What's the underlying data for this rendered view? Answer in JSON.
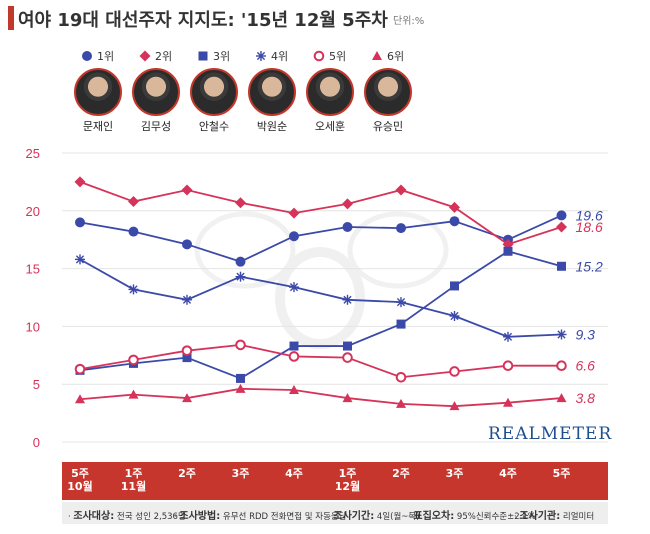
{
  "header": {
    "title": "여야 19대 대선주자 지지도: '15년 12월 5주차",
    "unit": "단위:%"
  },
  "legend": [
    {
      "rank": "1위",
      "name": "문재인",
      "color": "#3b4aa8",
      "marker": "circle"
    },
    {
      "rank": "2위",
      "name": "김무성",
      "color": "#d6335a",
      "marker": "diamond"
    },
    {
      "rank": "3위",
      "name": "안철수",
      "color": "#3b4aa8",
      "marker": "square"
    },
    {
      "rank": "4위",
      "name": "박원순",
      "color": "#3b4aa8",
      "marker": "star"
    },
    {
      "rank": "5위",
      "name": "오세훈",
      "color": "#d6335a",
      "marker": "ring"
    },
    {
      "rank": "6위",
      "name": "유승민",
      "color": "#d6335a",
      "marker": "triangle"
    }
  ],
  "brand": "REALMETER",
  "chart_data": {
    "type": "line",
    "categories": [
      [
        "5주",
        "10월"
      ],
      [
        "1주",
        "11월"
      ],
      [
        "2주",
        ""
      ],
      [
        "3주",
        ""
      ],
      [
        "4주",
        ""
      ],
      [
        "1주",
        "12월"
      ],
      [
        "2주",
        ""
      ],
      [
        "3주",
        ""
      ],
      [
        "4주",
        ""
      ],
      [
        "5주",
        ""
      ]
    ],
    "ylim": [
      0,
      25
    ],
    "yticks": [
      "0",
      "5",
      "10",
      "15",
      "20",
      "25"
    ],
    "grid": true,
    "series": [
      {
        "name": "문재인",
        "color": "#3b4aa8",
        "marker": "circle",
        "values": [
          19.0,
          18.2,
          17.1,
          15.6,
          17.8,
          18.6,
          18.5,
          19.1,
          17.5,
          19.6
        ],
        "end_label": "19.6"
      },
      {
        "name": "김무성",
        "color": "#d6335a",
        "marker": "diamond",
        "values": [
          22.5,
          20.8,
          21.8,
          20.7,
          19.8,
          20.6,
          21.8,
          20.3,
          17.1,
          18.6
        ],
        "end_label": "18.6"
      },
      {
        "name": "안철수",
        "color": "#3b4aa8",
        "marker": "square",
        "values": [
          6.2,
          6.8,
          7.3,
          5.5,
          8.3,
          8.3,
          10.2,
          13.5,
          16.5,
          15.2
        ],
        "end_label": "15.2"
      },
      {
        "name": "박원순",
        "color": "#3b4aa8",
        "marker": "star",
        "values": [
          15.8,
          13.2,
          12.3,
          14.3,
          13.4,
          12.3,
          12.1,
          10.9,
          9.1,
          9.3
        ],
        "end_label": "9.3"
      },
      {
        "name": "오세훈",
        "color": "#d6335a",
        "marker": "ring",
        "values": [
          6.3,
          7.1,
          7.9,
          8.4,
          7.4,
          7.3,
          5.6,
          6.1,
          6.6,
          6.6
        ],
        "end_label": "6.6"
      },
      {
        "name": "유승민",
        "color": "#d6335a",
        "marker": "triangle",
        "values": [
          3.7,
          4.1,
          3.8,
          4.6,
          4.5,
          3.8,
          3.3,
          3.1,
          3.4,
          3.8
        ],
        "end_label": "3.8"
      }
    ]
  },
  "footer": {
    "survey_target_label": "조사대상:",
    "survey_target": "전국 성인 2,536명",
    "survey_method_label": "조사방법:",
    "survey_method": "유무선 RDD 전화면접 및 자동응답",
    "survey_period_label": "조사기간:",
    "survey_period": "4일(월~목)",
    "sampling_error_label": "표집오차:",
    "sampling_error": "95%신뢰수준±2.1%",
    "institution_label": "조사기관:",
    "institution": "리얼미터"
  }
}
